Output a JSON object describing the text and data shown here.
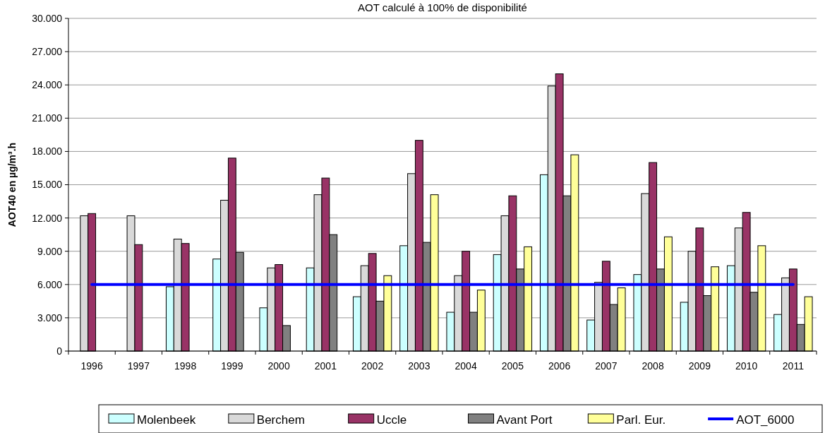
{
  "chart_data": {
    "type": "bar",
    "title": "AOT calculé à 100% de disponibilité",
    "ylabel": "AOT40 en µg/m³.h",
    "categories": [
      "1996",
      "1997",
      "1998",
      "1999",
      "2000",
      "2001",
      "2002",
      "2003",
      "2004",
      "2005",
      "2006",
      "2007",
      "2008",
      "2009",
      "2010",
      "2011"
    ],
    "series": [
      {
        "name": "Molenbeek",
        "color": "#ccffff",
        "values": [
          null,
          null,
          5800,
          8300,
          3900,
          7500,
          4900,
          9500,
          3500,
          8700,
          15900,
          2800,
          6900,
          4400,
          7700,
          3300
        ]
      },
      {
        "name": "Berchem",
        "color": "#d9d9d9",
        "values": [
          12200,
          12200,
          10100,
          13600,
          7500,
          14100,
          7700,
          16000,
          6800,
          12200,
          23900,
          6200,
          14200,
          9000,
          11100,
          6600
        ]
      },
      {
        "name": "Uccle",
        "color": "#993366",
        "values": [
          12400,
          9600,
          9700,
          17400,
          7800,
          15600,
          8800,
          19000,
          9000,
          14000,
          25000,
          8100,
          17000,
          11100,
          12500,
          7400
        ]
      },
      {
        "name": "Avant Port",
        "color": "#808080",
        "values": [
          null,
          null,
          null,
          8900,
          2300,
          10500,
          4500,
          9800,
          3500,
          7400,
          14000,
          4200,
          7400,
          5000,
          5300,
          2400
        ]
      },
      {
        "name": "Parl. Eur.",
        "color": "#ffff99",
        "values": [
          null,
          null,
          null,
          null,
          null,
          null,
          6800,
          14100,
          5500,
          9400,
          17700,
          5700,
          10300,
          7600,
          9500,
          4900
        ]
      },
      {
        "name": "AOT_6000",
        "type": "line",
        "color": "#0000ff",
        "values": [
          6000,
          6000,
          6000,
          6000,
          6000,
          6000,
          6000,
          6000,
          6000,
          6000,
          6000,
          6000,
          6000,
          6000,
          6000,
          6000
        ]
      }
    ],
    "ylim": [
      0,
      30000
    ],
    "yticks": [
      {
        "value": 0,
        "label": "0"
      },
      {
        "value": 3000,
        "label": "3.000"
      },
      {
        "value": 6000,
        "label": "6.000"
      },
      {
        "value": 9000,
        "label": "9.000"
      },
      {
        "value": 12000,
        "label": "12.000"
      },
      {
        "value": 15000,
        "label": "15.000"
      },
      {
        "value": 18000,
        "label": "18.000"
      },
      {
        "value": 21000,
        "label": "21.000"
      },
      {
        "value": 24000,
        "label": "24.000"
      },
      {
        "value": 27000,
        "label": "27.000"
      },
      {
        "value": 30000,
        "label": "30.000"
      }
    ],
    "grid": "y",
    "legend": "bottom"
  }
}
